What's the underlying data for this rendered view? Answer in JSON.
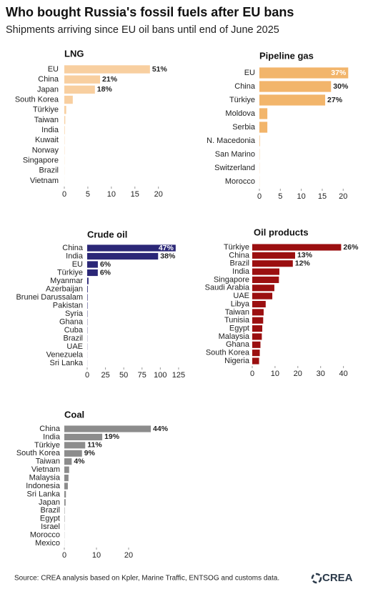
{
  "title": "Who bought Russia's fossil fuels after EU bans",
  "subtitle": "Shipments arriving since EU oil bans until end of June 2025",
  "source": "Source: CREA analysis based on Kpler, Marine Traffic, ENTSOG and customs data.",
  "logo": "CREA",
  "chart_data": [
    {
      "type": "bar",
      "orientation": "horizontal",
      "title": "LNG",
      "color": "#f8cfa0",
      "categories": [
        "EU",
        "China",
        "Japan",
        "South Korea",
        "Türkiye",
        "Taiwan",
        "India",
        "Kuwait",
        "Norway",
        "Singapore",
        "Brazil",
        "Vietnam"
      ],
      "values": [
        18.2,
        7.6,
        6.5,
        1.8,
        0.4,
        0.2,
        0.1,
        0.05,
        0.05,
        0.03,
        0.02,
        0.01
      ],
      "share_labels": [
        "51%",
        "21%",
        "18%",
        null,
        null,
        null,
        null,
        null,
        null,
        null,
        null,
        null
      ],
      "xlim": [
        0,
        20.5
      ],
      "xticks": [
        0,
        5,
        10,
        15,
        20
      ]
    },
    {
      "type": "bar",
      "orientation": "horizontal",
      "title": "Pipeline gas",
      "color": "#f2b56b",
      "categories": [
        "EU",
        "China",
        "Türkiye",
        "Moldova",
        "Serbia",
        "N. Macedonia",
        "San Marino",
        "Switzerland",
        "Morocco"
      ],
      "values": [
        21.2,
        17.1,
        15.7,
        1.9,
        1.9,
        0.1,
        0.05,
        0.03,
        0.02
      ],
      "share_labels": [
        "37%",
        "30%",
        "27%",
        null,
        null,
        null,
        null,
        null,
        null
      ],
      "xlim": [
        0,
        22
      ],
      "xticks": [
        0,
        5,
        10,
        15,
        20
      ]
    },
    {
      "type": "bar",
      "orientation": "horizontal",
      "title": "Crude oil",
      "color": "#2b2777",
      "categories": [
        "China",
        "India",
        "EU",
        "Türkiye",
        "Myanmar",
        "Azerbaijan",
        "Brunei Darussalam",
        "Pakistan",
        "Syria",
        "Ghana",
        "Cuba",
        "Brazil",
        "UAE",
        "Venezuela",
        "Sri Lanka"
      ],
      "values": [
        121,
        97,
        14.6,
        14.5,
        1.8,
        0.8,
        0.6,
        0.5,
        0.4,
        0.3,
        0.3,
        0.2,
        0.2,
        0.1,
        0.1
      ],
      "share_labels": [
        "47%",
        "38%",
        "6%",
        "6%",
        null,
        null,
        null,
        null,
        null,
        null,
        null,
        null,
        null,
        null,
        null
      ],
      "xlim": [
        0,
        128
      ],
      "xticks": [
        0,
        25,
        50,
        75,
        100,
        125
      ]
    },
    {
      "type": "bar",
      "orientation": "horizontal",
      "title": "Oil products",
      "color": "#9b0f10",
      "categories": [
        "Türkiye",
        "China",
        "Brazil",
        "India",
        "Singapore",
        "Saudi Arabia",
        "UAE",
        "Libya",
        "Taiwan",
        "Tunisia",
        "Egypt",
        "Malaysia",
        "Ghana",
        "South Korea",
        "Nigeria"
      ],
      "values": [
        39,
        18.8,
        17.8,
        11.9,
        11.7,
        9.7,
        8.8,
        5.9,
        5,
        4.8,
        4.4,
        4.2,
        3.6,
        3.3,
        3
      ],
      "share_labels": [
        "26%",
        "13%",
        "12%",
        null,
        null,
        null,
        null,
        null,
        null,
        null,
        null,
        null,
        null,
        null,
        null
      ],
      "xlim": [
        0,
        42
      ],
      "xticks": [
        0,
        10,
        20,
        30,
        40
      ]
    },
    {
      "type": "bar",
      "orientation": "horizontal",
      "title": "Coal",
      "color": "#8c8c8c",
      "categories": [
        "China",
        "India",
        "Türkiye",
        "South Korea",
        "Taiwan",
        "Vietnam",
        "Malaysia",
        "Indonesia",
        "Sri Lanka",
        "Japan",
        "Brazil",
        "Egypt",
        "Israel",
        "Morocco",
        "Mexico"
      ],
      "values": [
        26.9,
        11.8,
        6.5,
        5.5,
        2.3,
        1.5,
        1.3,
        1.1,
        0.5,
        0.4,
        0.1,
        0.1,
        0.05,
        0.04,
        0.03
      ],
      "share_labels": [
        "44%",
        "19%",
        "11%",
        "9%",
        "4%",
        null,
        null,
        null,
        null,
        null,
        null,
        null,
        null,
        null,
        null
      ],
      "xlim": [
        0,
        28
      ],
      "xticks": [
        0,
        10,
        20
      ]
    }
  ]
}
